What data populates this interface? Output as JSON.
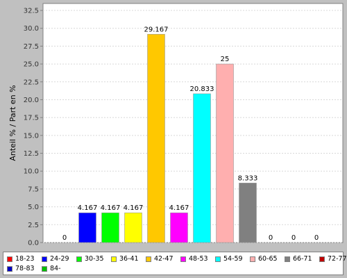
{
  "chart_data": {
    "type": "bar",
    "ylabel": "Anteil % / Part en %",
    "ylim": [
      0,
      32.5
    ],
    "ytick_step": 2.5,
    "ytick_labels": [
      "0.0",
      "2.5",
      "5.0",
      "7.5",
      "10.0",
      "12.5",
      "15.0",
      "17.5",
      "20.0",
      "22.5",
      "25.0",
      "27.5",
      "30.0",
      "32.5"
    ],
    "grid": true,
    "legend_position": "bottom",
    "categories": [
      "18-23",
      "24-29",
      "30-35",
      "36-41",
      "42-47",
      "48-53",
      "54-59",
      "60-65",
      "66-71",
      "72-77",
      "78-83",
      "84-"
    ],
    "values": [
      0,
      4.167,
      4.167,
      4.167,
      29.167,
      4.167,
      20.833,
      25,
      8.333,
      0,
      0,
      0
    ],
    "value_labels": [
      "0",
      "4.167",
      "4.167",
      "4.167",
      "29.167",
      "4.167",
      "20.833",
      "25",
      "8.333",
      "0",
      "0",
      "0"
    ],
    "colors": [
      "#ff0000",
      "#0000ff",
      "#00ff00",
      "#ffff00",
      "#ffc800",
      "#ff00ff",
      "#00ffff",
      "#ffafaf",
      "#808080",
      "#c00000",
      "#0000c0",
      "#00c000"
    ]
  }
}
